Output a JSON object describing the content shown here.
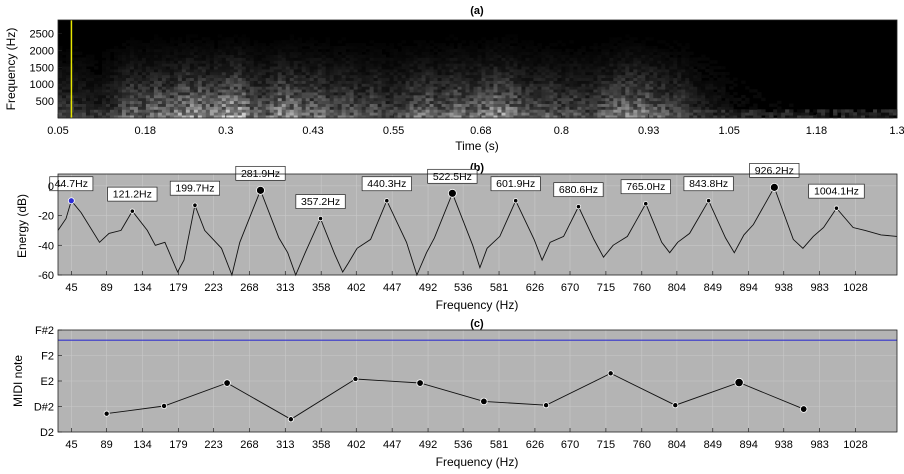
{
  "chart_data": [
    {
      "panel": "(a)",
      "type": "heatmap",
      "title": "(a)",
      "xlabel": "Time (s)",
      "ylabel": "Frequency (Hz)",
      "x_ticks": [
        "0.05",
        "0.18",
        "0.3",
        "0.43",
        "0.55",
        "0.68",
        "0.8",
        "0.93",
        "1.05",
        "1.18",
        "1.3"
      ],
      "y_ticks": [
        "500",
        "1000",
        "1500",
        "2000",
        "2500"
      ],
      "xlim": [
        0.05,
        1.3
      ],
      "ylim": [
        0,
        2900
      ],
      "marker_time": 0.07,
      "marker_color": "#e6e600",
      "colormap": "gray",
      "energy_envelope": {
        "t": [
          0.05,
          0.08,
          0.11,
          0.14,
          0.16,
          0.18,
          0.2,
          0.22,
          0.24,
          0.26,
          0.28,
          0.3,
          0.32,
          0.34,
          0.36,
          0.38,
          0.4,
          0.42,
          0.44,
          0.46,
          0.48,
          0.5,
          0.52,
          0.54,
          0.56,
          0.58,
          0.6,
          0.62,
          0.64,
          0.66,
          0.68,
          0.7,
          0.72,
          0.74,
          0.76,
          0.78,
          0.8,
          0.82,
          0.84,
          0.86,
          0.88,
          0.9,
          0.92,
          0.94,
          0.96,
          0.98,
          1.0,
          1.02,
          1.05,
          1.1,
          1.18,
          1.3
        ],
        "v": [
          0.3,
          0.25,
          0.15,
          0.35,
          0.55,
          0.5,
          0.6,
          0.55,
          0.75,
          0.7,
          0.6,
          0.8,
          0.85,
          0.5,
          0.45,
          0.7,
          0.65,
          0.5,
          0.55,
          0.4,
          0.5,
          0.35,
          0.45,
          0.3,
          0.35,
          0.5,
          0.55,
          0.4,
          0.6,
          0.5,
          0.55,
          0.7,
          0.65,
          0.5,
          0.4,
          0.45,
          0.35,
          0.4,
          0.3,
          0.45,
          0.55,
          0.65,
          0.6,
          0.5,
          0.4,
          0.35,
          0.2,
          0.15,
          0.08,
          0.05,
          0.03,
          0.02
        ]
      }
    },
    {
      "panel": "(b)",
      "type": "line",
      "title": "(b)",
      "xlabel": "Frequency (Hz)",
      "ylabel": "Energy (dB)",
      "x_ticks": [
        "45",
        "89",
        "134",
        "179",
        "223",
        "268",
        "313",
        "358",
        "402",
        "447",
        "492",
        "536",
        "581",
        "626",
        "670",
        "715",
        "760",
        "804",
        "849",
        "894",
        "938",
        "983",
        "1028"
      ],
      "y_ticks": [
        "0",
        "-20",
        "-40",
        "-60"
      ],
      "xlim": [
        28,
        1080
      ],
      "ylim": [
        -60,
        8
      ],
      "peaks": [
        {
          "freq": 44.7,
          "db": -10,
          "label": "44.7Hz",
          "marker": "blue"
        },
        {
          "freq": 121.2,
          "db": -17,
          "label": "121.2Hz",
          "marker": "small"
        },
        {
          "freq": 199.7,
          "db": -13,
          "label": "199.7Hz",
          "marker": "small"
        },
        {
          "freq": 281.9,
          "db": -3,
          "label": "281.9Hz",
          "marker": "large"
        },
        {
          "freq": 357.2,
          "db": -22,
          "label": "357.2Hz",
          "marker": "small"
        },
        {
          "freq": 440.3,
          "db": -10,
          "label": "440.3Hz",
          "marker": "small"
        },
        {
          "freq": 522.5,
          "db": -5,
          "label": "522.5Hz",
          "marker": "large"
        },
        {
          "freq": 601.9,
          "db": -10,
          "label": "601.9Hz",
          "marker": "small"
        },
        {
          "freq": 680.6,
          "db": -14,
          "label": "680.6Hz",
          "marker": "small"
        },
        {
          "freq": 765.0,
          "db": -12,
          "label": "765.0Hz",
          "marker": "small"
        },
        {
          "freq": 843.8,
          "db": -10,
          "label": "843.8Hz",
          "marker": "small"
        },
        {
          "freq": 926.2,
          "db": -1,
          "label": "926.2Hz",
          "marker": "large"
        },
        {
          "freq": 1004.1,
          "db": -15,
          "label": "1004.1Hz",
          "marker": "small"
        }
      ],
      "valleys": [
        {
          "freq": 28,
          "db": -30
        },
        {
          "freq": 38,
          "db": -22
        },
        {
          "freq": 57,
          "db": -18
        },
        {
          "freq": 80,
          "db": -38
        },
        {
          "freq": 92,
          "db": -32
        },
        {
          "freq": 107,
          "db": -30
        },
        {
          "freq": 140,
          "db": -30
        },
        {
          "freq": 150,
          "db": -40
        },
        {
          "freq": 162,
          "db": -38
        },
        {
          "freq": 178,
          "db": -58
        },
        {
          "freq": 186,
          "db": -50
        },
        {
          "freq": 212,
          "db": -30
        },
        {
          "freq": 233,
          "db": -42
        },
        {
          "freq": 246,
          "db": -60
        },
        {
          "freq": 256,
          "db": -38
        },
        {
          "freq": 305,
          "db": -35
        },
        {
          "freq": 316,
          "db": -45
        },
        {
          "freq": 326,
          "db": -60
        },
        {
          "freq": 338,
          "db": -45
        },
        {
          "freq": 375,
          "db": -46
        },
        {
          "freq": 385,
          "db": -58
        },
        {
          "freq": 392,
          "db": -52
        },
        {
          "freq": 403,
          "db": -42
        },
        {
          "freq": 420,
          "db": -36
        },
        {
          "freq": 465,
          "db": -38
        },
        {
          "freq": 478,
          "db": -60
        },
        {
          "freq": 490,
          "db": -45
        },
        {
          "freq": 500,
          "db": -35
        },
        {
          "freq": 548,
          "db": -40
        },
        {
          "freq": 557,
          "db": -55
        },
        {
          "freq": 566,
          "db": -42
        },
        {
          "freq": 582,
          "db": -34
        },
        {
          "freq": 625,
          "db": -36
        },
        {
          "freq": 635,
          "db": -50
        },
        {
          "freq": 645,
          "db": -38
        },
        {
          "freq": 662,
          "db": -34
        },
        {
          "freq": 700,
          "db": -36
        },
        {
          "freq": 712,
          "db": -48
        },
        {
          "freq": 724,
          "db": -40
        },
        {
          "freq": 742,
          "db": -34
        },
        {
          "freq": 785,
          "db": -38
        },
        {
          "freq": 795,
          "db": -45
        },
        {
          "freq": 805,
          "db": -38
        },
        {
          "freq": 820,
          "db": -32
        },
        {
          "freq": 865,
          "db": -35
        },
        {
          "freq": 876,
          "db": -45
        },
        {
          "freq": 888,
          "db": -33
        },
        {
          "freq": 900,
          "db": -26
        },
        {
          "freq": 950,
          "db": -36
        },
        {
          "freq": 962,
          "db": -42
        },
        {
          "freq": 975,
          "db": -34
        },
        {
          "freq": 988,
          "db": -28
        },
        {
          "freq": 1025,
          "db": -28
        },
        {
          "freq": 1040,
          "db": -30
        },
        {
          "freq": 1060,
          "db": -33
        },
        {
          "freq": 1080,
          "db": -34
        }
      ]
    },
    {
      "panel": "(c)",
      "type": "line",
      "title": "(c)",
      "xlabel": "Frequency (Hz)",
      "ylabel": "MIDI note",
      "x_ticks": [
        "45",
        "89",
        "134",
        "179",
        "223",
        "268",
        "313",
        "358",
        "402",
        "447",
        "492",
        "536",
        "581",
        "626",
        "670",
        "715",
        "760",
        "804",
        "849",
        "894",
        "938",
        "983",
        "1028"
      ],
      "y_ticks": [
        "D2",
        "D#2",
        "E2",
        "F2",
        "F#2"
      ],
      "y_tick_values": [
        38,
        39,
        40,
        41,
        42
      ],
      "xlim": [
        28,
        1080
      ],
      "ylim": [
        38,
        42
      ],
      "reference_line": {
        "midi": 41.6,
        "color": "#3333cc"
      },
      "points": [
        {
          "freq": 89,
          "midi": 38.72,
          "marker": "small"
        },
        {
          "freq": 161,
          "midi": 39.02,
          "marker": "small"
        },
        {
          "freq": 240,
          "midi": 39.92,
          "marker": "medium"
        },
        {
          "freq": 320,
          "midi": 38.5,
          "marker": "small"
        },
        {
          "freq": 401,
          "midi": 40.08,
          "marker": "small"
        },
        {
          "freq": 482,
          "midi": 39.92,
          "marker": "medium"
        },
        {
          "freq": 562,
          "midi": 39.2,
          "marker": "medium"
        },
        {
          "freq": 640,
          "midi": 39.05,
          "marker": "small"
        },
        {
          "freq": 721,
          "midi": 40.3,
          "marker": "small"
        },
        {
          "freq": 802,
          "midi": 39.05,
          "marker": "small"
        },
        {
          "freq": 882,
          "midi": 39.94,
          "marker": "large"
        },
        {
          "freq": 963,
          "midi": 38.9,
          "marker": "medium"
        }
      ]
    }
  ]
}
